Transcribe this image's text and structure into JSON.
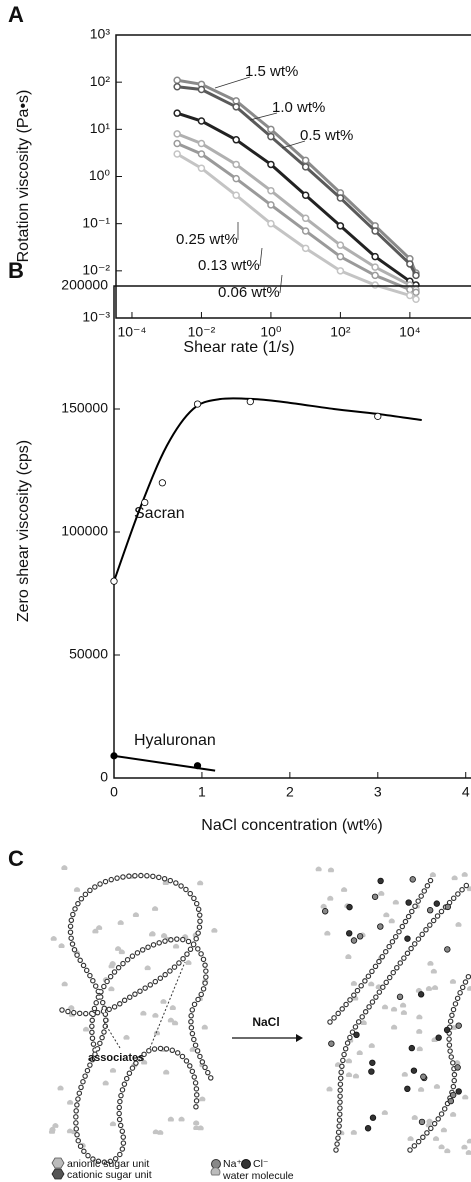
{
  "panel_labels": [
    "A",
    "B",
    "C"
  ],
  "chart_data": [
    {
      "type": "line",
      "log_x": true,
      "log_y": true,
      "xlabel": "Shear rate (1/s)",
      "ylabel": "Rotation viscosity (Pa•s)",
      "x": [
        0.002,
        0.01,
        0.1,
        1,
        10,
        100,
        1000,
        10000,
        15000
      ],
      "series": [
        {
          "name": "1.5 wt%",
          "color": "#8a8a8a",
          "values": [
            110,
            90,
            40,
            10,
            2.2,
            0.45,
            0.09,
            0.018,
            0.009
          ]
        },
        {
          "name": "1.0 wt%",
          "color": "#5a5a5a",
          "values": [
            80,
            70,
            30,
            7,
            1.6,
            0.35,
            0.07,
            0.014,
            0.008
          ]
        },
        {
          "name": "0.5 wt%",
          "color": "#222222",
          "values": [
            22,
            15,
            6,
            1.8,
            0.4,
            0.09,
            0.02,
            0.006,
            0.005
          ]
        },
        {
          "name": "0.25 wt%",
          "color": "#b0b0b0",
          "values": [
            8,
            5,
            1.8,
            0.5,
            0.13,
            0.035,
            0.012,
            0.005,
            0.004
          ]
        },
        {
          "name": "0.13 wt%",
          "color": "#9a9a9a",
          "values": [
            5,
            3,
            0.9,
            0.25,
            0.07,
            0.02,
            0.008,
            0.004,
            0.0035
          ]
        },
        {
          "name": "0.06 wt%",
          "color": "#c4c4c4",
          "values": [
            3,
            1.5,
            0.4,
            0.1,
            0.03,
            0.01,
            0.005,
            0.003,
            0.0025
          ]
        }
      ],
      "label_colors": [
        "#8a8a8a",
        "#6a6a6a",
        "#111111",
        "#9a9a9a",
        "#6a6a6a",
        "#222222"
      ],
      "xlim": [
        3.47e-05,
        575000
      ],
      "ylim": [
        0.001,
        1000
      ],
      "xticks": [
        {
          "value": 0.0001,
          "label": "10⁻⁴"
        },
        {
          "value": 0.01,
          "label": "10⁻²"
        },
        {
          "value": 1,
          "label": "10⁰"
        },
        {
          "value": 100,
          "label": "10²"
        },
        {
          "value": 10000,
          "label": "10⁴"
        }
      ],
      "yticks": [
        {
          "value": 0.001,
          "label": "10⁻³"
        },
        {
          "value": 0.01,
          "label": "10⁻²"
        },
        {
          "value": 0.1,
          "label": "10⁻¹"
        },
        {
          "value": 1,
          "label": "10⁰"
        },
        {
          "value": 10,
          "label": "10¹"
        },
        {
          "value": 100,
          "label": "10²"
        },
        {
          "value": 1000,
          "label": "10³"
        }
      ]
    },
    {
      "type": "scatter",
      "xlabel": "NaCl concentration (wt%)",
      "ylabel": "Zero shear viscosity (cps)",
      "series": [
        {
          "name": "Sacran",
          "color": "#000000",
          "marker_fill": "#ffffff",
          "x": [
            0,
            0.35,
            0.55,
            0.95,
            1.55,
            3
          ],
          "values": [
            80000,
            112000,
            120000,
            152000,
            153000,
            147000
          ],
          "fit_x": [
            0,
            0.3,
            0.6,
            0.9,
            1.2,
            1.6,
            2,
            2.5,
            3,
            3.5
          ],
          "fit_values": [
            80000,
            110000,
            135000,
            150000,
            154000,
            154000,
            152500,
            150000,
            148000,
            145500
          ]
        },
        {
          "name": "Hyaluronan",
          "color": "#000000",
          "marker_fill": "#000000",
          "x": [
            0,
            0.95
          ],
          "values": [
            9000,
            5000
          ],
          "fit_x": [
            0,
            1.15
          ],
          "fit_values": [
            9000,
            3000
          ]
        }
      ],
      "xlim": [
        0,
        4.06
      ],
      "ylim": [
        0,
        200000
      ],
      "xticks": [
        0,
        1,
        2,
        3,
        4
      ],
      "yticks": [
        0,
        50000,
        100000,
        150000,
        200000
      ]
    }
  ],
  "diagram": {
    "annotation": "associates",
    "arrow_label": "NaCl",
    "legend": [
      "anionic  sugar unit",
      "cationic sugar unit",
      "Na⁺",
      "Cl⁻",
      "water molecule"
    ]
  }
}
